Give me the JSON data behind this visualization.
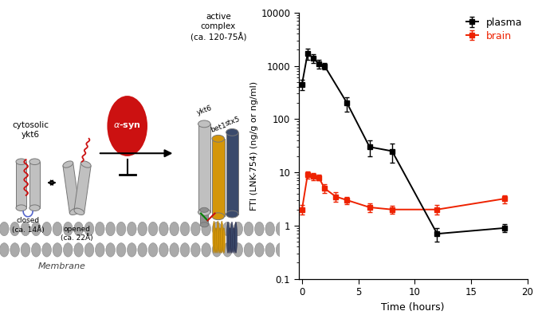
{
  "plasma_x": [
    0,
    0.5,
    1,
    1.5,
    2,
    4,
    6,
    8,
    12,
    18
  ],
  "plasma_y": [
    450,
    1700,
    1400,
    1100,
    1000,
    200,
    30,
    25,
    0.7,
    0.9
  ],
  "plasma_yerr_lo": [
    100,
    400,
    250,
    200,
    150,
    60,
    10,
    10,
    0.2,
    0.15
  ],
  "plasma_yerr_hi": [
    100,
    400,
    250,
    200,
    150,
    60,
    10,
    10,
    0.2,
    0.15
  ],
  "brain_x": [
    0,
    0.5,
    1,
    1.5,
    2,
    3,
    4,
    6,
    8,
    12,
    18
  ],
  "brain_y": [
    2.0,
    9.0,
    8.5,
    8.0,
    5.0,
    3.5,
    3.0,
    2.2,
    2.0,
    2.0,
    3.2
  ],
  "brain_yerr_lo": [
    0.4,
    1.5,
    1.3,
    1.0,
    0.9,
    0.7,
    0.5,
    0.4,
    0.35,
    0.4,
    0.55
  ],
  "brain_yerr_hi": [
    0.4,
    1.5,
    1.3,
    1.0,
    0.9,
    0.7,
    0.5,
    0.4,
    0.35,
    0.4,
    0.55
  ],
  "plasma_color": "#000000",
  "brain_color": "#ee2200",
  "xlabel": "Time (hours)",
  "ylabel": "FTI (LNK-754) (ng/g or ng/ml)",
  "ylim_log": [
    0.1,
    10000
  ],
  "xlim": [
    -0.3,
    20
  ],
  "xticks": [
    0,
    5,
    10,
    15,
    20
  ],
  "legend_plasma": "plasma",
  "legend_brain": "brain",
  "bg_color": "#ffffff",
  "colors": {
    "cylinder_gray": "#c0c0c0",
    "cylinder_dark": "#909090",
    "alpha_syn_red": "#cc1111",
    "bet1_yellow": "#d4960a",
    "stx5_navy": "#3a4a6b",
    "membrane_gray": "#aaaaaa",
    "red_chain": "#cc1111",
    "green_linker": "#22aa22",
    "arrow_color": "#222222"
  }
}
